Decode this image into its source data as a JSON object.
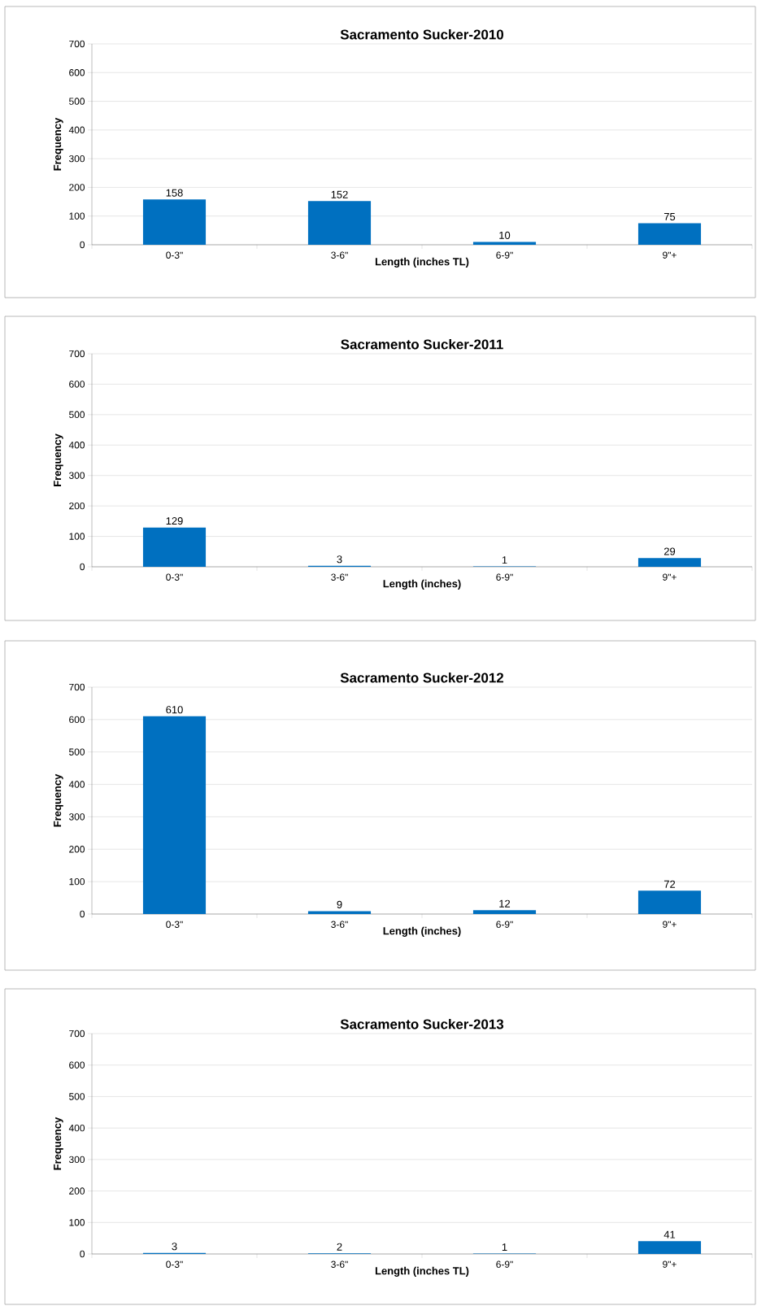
{
  "chart_data": [
    {
      "type": "bar",
      "title": "Sacramento Sucker-2010",
      "xlabel": "Length (inches TL)",
      "ylabel": "Frequency",
      "categories": [
        "0-3\"",
        "3-6\"",
        "6-9\"",
        "9\"+"
      ],
      "values": [
        158,
        152,
        10,
        75
      ],
      "color": "#0070c0",
      "ylim": [
        0,
        700
      ],
      "yticks": [
        0,
        100,
        200,
        300,
        400,
        500,
        600,
        700
      ],
      "grid": "y",
      "data_labels": true
    },
    {
      "type": "bar",
      "title": "Sacramento Sucker-2011",
      "xlabel": "Length (inches)",
      "ylabel": "Frequency",
      "categories": [
        "0-3\"",
        "3-6\"",
        "6-9\"",
        "9\"+"
      ],
      "values": [
        129,
        3,
        1,
        29
      ],
      "color": "#0070c0",
      "ylim": [
        0,
        700
      ],
      "yticks": [
        0,
        100,
        200,
        300,
        400,
        500,
        600,
        700
      ],
      "grid": "y",
      "data_labels": true
    },
    {
      "type": "bar",
      "title": "Sacramento Sucker-2012",
      "xlabel": "Length (inches)",
      "ylabel": "Frequency",
      "categories": [
        "0-3\"",
        "3-6\"",
        "6-9\"",
        "9\"+"
      ],
      "values": [
        610,
        9,
        12,
        72
      ],
      "color": "#0070c0",
      "ylim": [
        0,
        700
      ],
      "yticks": [
        0,
        100,
        200,
        300,
        400,
        500,
        600,
        700
      ],
      "grid": "y",
      "data_labels": true
    },
    {
      "type": "bar",
      "title": "Sacramento Sucker-2013",
      "xlabel": "Length (inches TL)",
      "ylabel": "Frequency",
      "categories": [
        "0-3\"",
        "3-6\"",
        "6-9\"",
        "9\"+"
      ],
      "values": [
        3,
        2,
        1,
        41
      ],
      "color": "#0070c0",
      "ylim": [
        0,
        700
      ],
      "yticks": [
        0,
        100,
        200,
        300,
        400,
        500,
        600,
        700
      ],
      "grid": "y",
      "data_labels": true
    }
  ]
}
